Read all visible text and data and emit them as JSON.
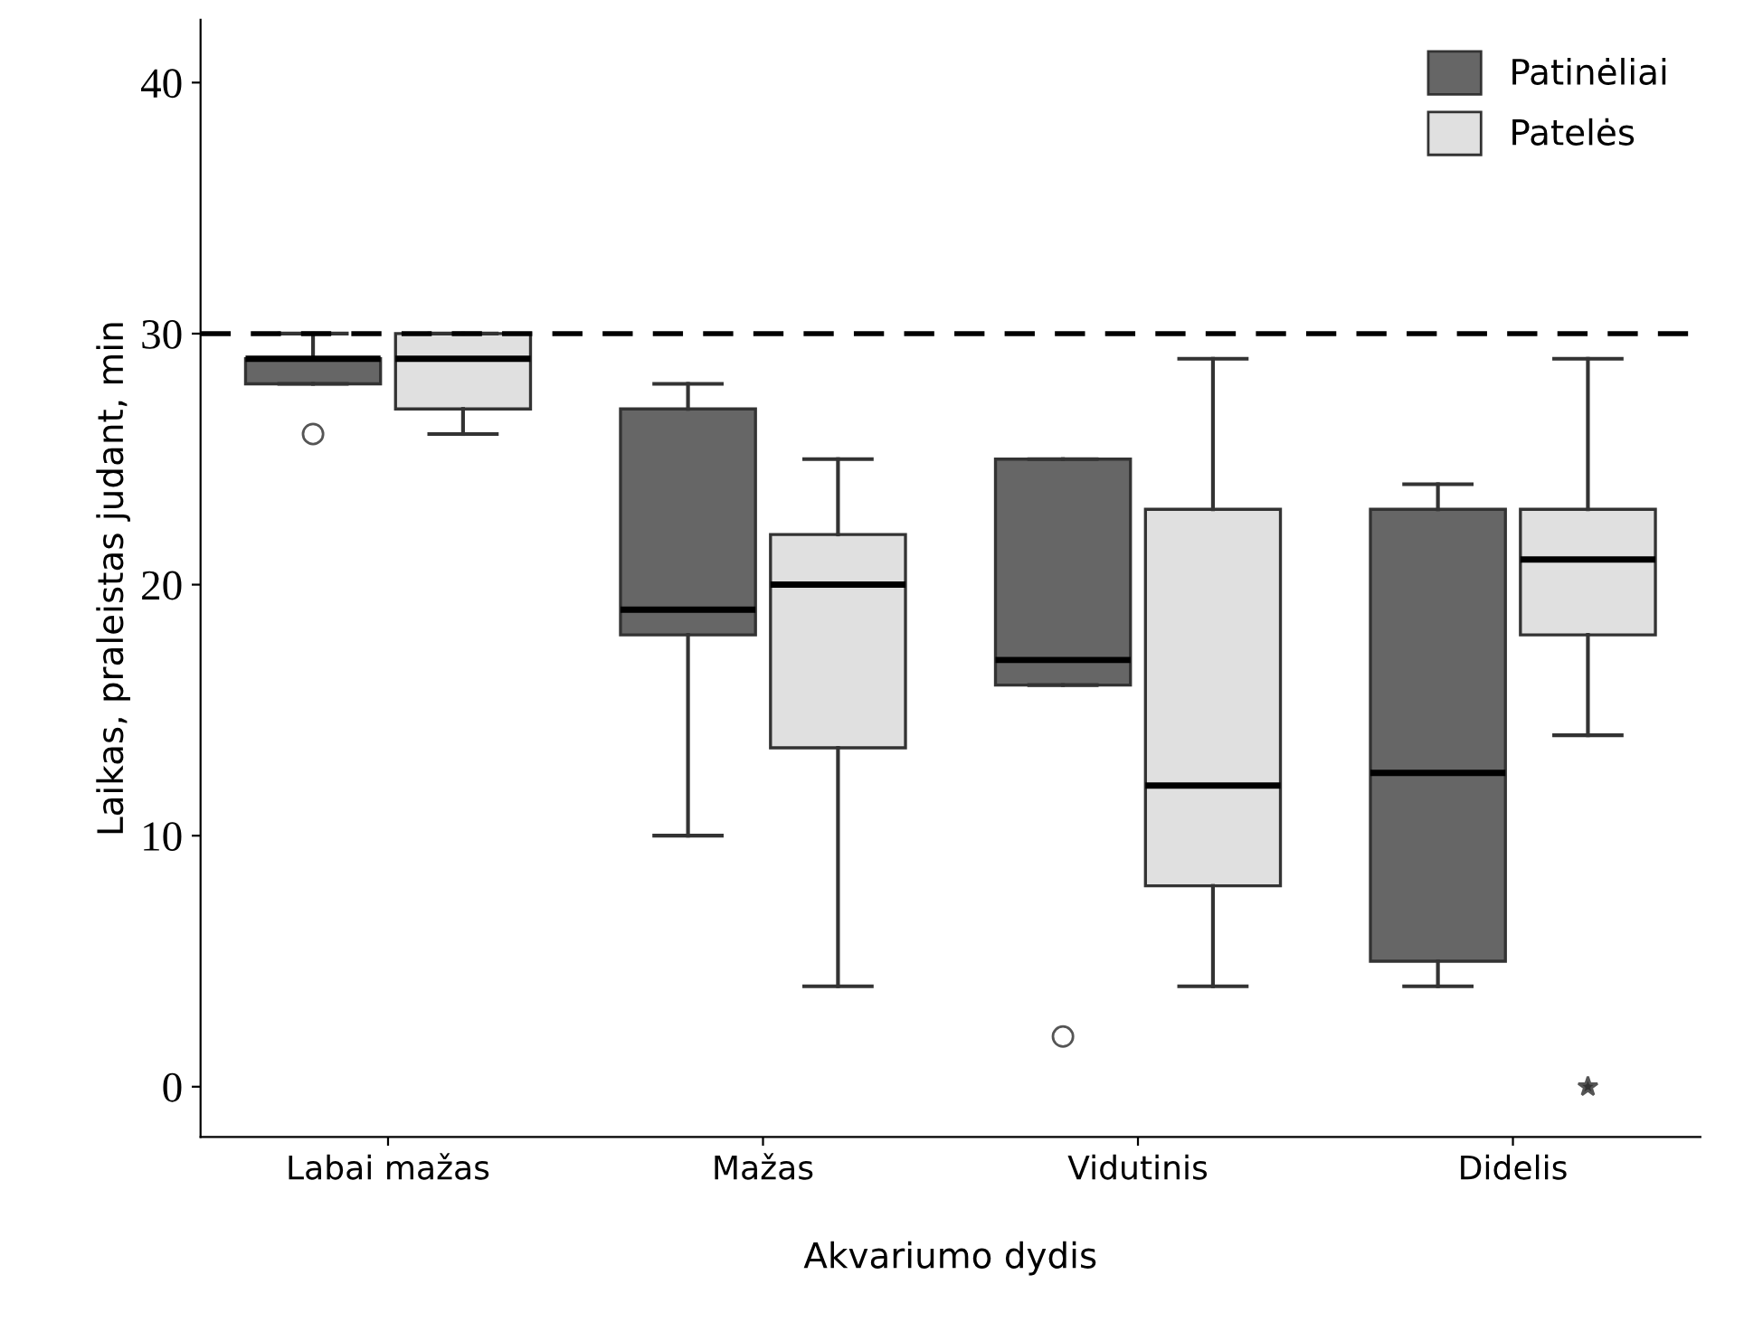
{
  "chart_data": {
    "type": "box",
    "xlabel": "Akvariumo dydis",
    "ylabel": "Laikas, praleistas judant, min",
    "categories": [
      "Labai mažas",
      "Mažas",
      "Vidutinis",
      "Didelis"
    ],
    "series": [
      {
        "name": "Patinėliai",
        "color": "#666666",
        "marker": "circle",
        "boxes": [
          {
            "low": 28,
            "q1": 28,
            "median": 29,
            "q3": 29,
            "high": 30,
            "outliers": [
              26
            ]
          },
          {
            "low": 10,
            "q1": 18,
            "median": 19,
            "q3": 27,
            "high": 28
          },
          {
            "low": 16,
            "q1": 16,
            "median": 17,
            "q3": 25,
            "high": 25,
            "outliers": [
              2
            ]
          },
          {
            "low": 4,
            "q1": 5,
            "median": 12.5,
            "q3": 23,
            "high": 24
          }
        ]
      },
      {
        "name": "Patelės",
        "color": "#e0e0e0",
        "marker": "star",
        "boxes": [
          {
            "low": 26,
            "q1": 27,
            "median": 29,
            "q3": 30,
            "high": 30
          },
          {
            "low": 4,
            "q1": 13.5,
            "median": 20,
            "q3": 22,
            "high": 25
          },
          {
            "low": 4,
            "q1": 8,
            "median": 12,
            "q3": 23,
            "high": 29
          },
          {
            "low": 14,
            "q1": 18,
            "median": 21,
            "q3": 23,
            "high": 29,
            "outliers": [
              0
            ]
          }
        ]
      }
    ],
    "ylim": [
      -2,
      42.5
    ],
    "yticks": [
      0,
      10,
      20,
      30,
      40
    ],
    "ref_lines": [
      {
        "axis": "y",
        "value": 30,
        "line_style": "dashed",
        "color": "#000000"
      }
    ],
    "legend": "top right",
    "grid": false
  }
}
